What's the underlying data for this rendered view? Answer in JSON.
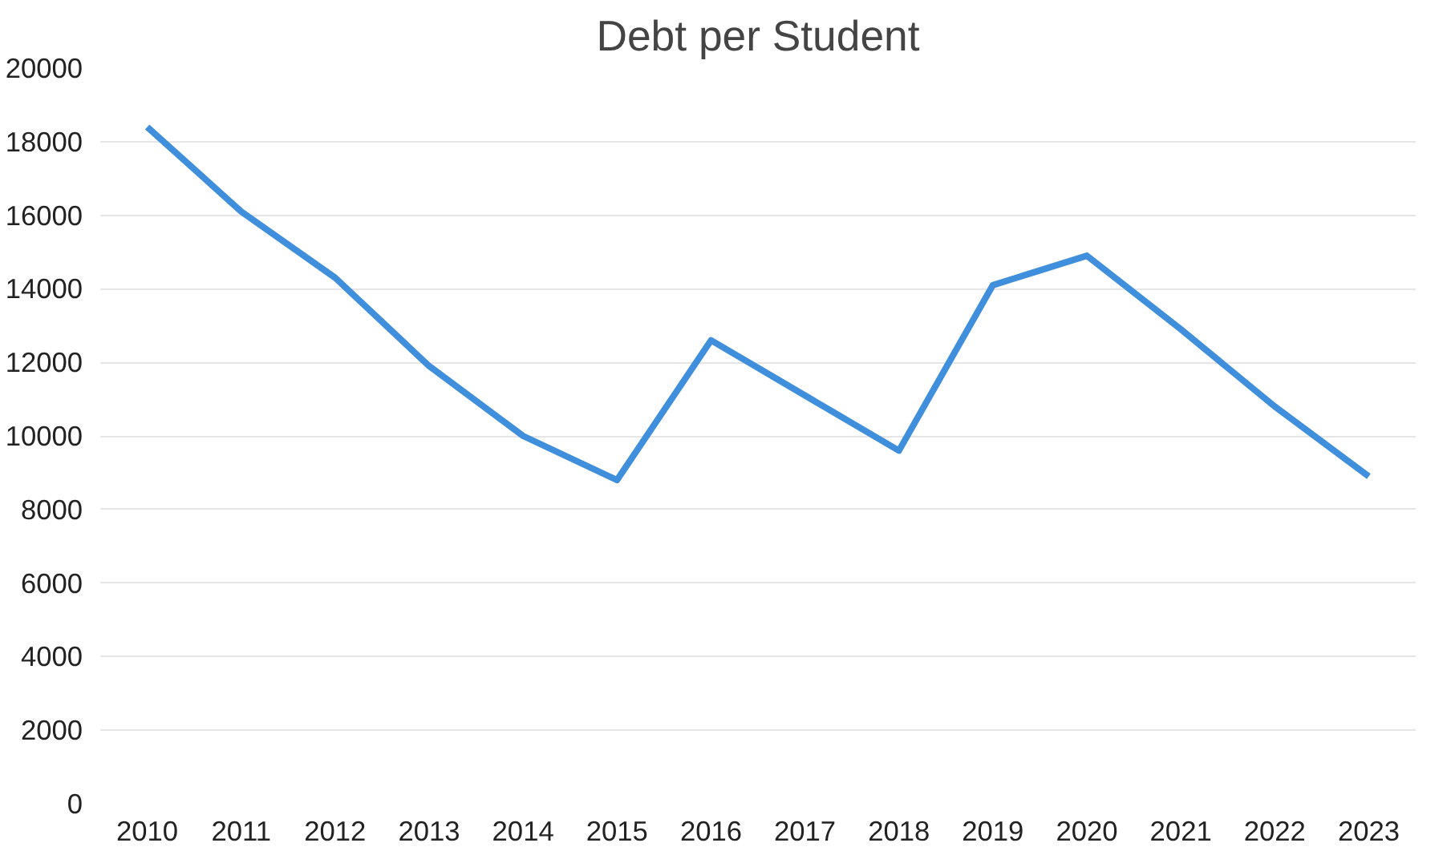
{
  "chart_data": {
    "type": "line",
    "title": "Debt per Student",
    "categories": [
      "2010",
      "2011",
      "2012",
      "2013",
      "2014",
      "2015",
      "2016",
      "2017",
      "2018",
      "2019",
      "2020",
      "2021",
      "2022",
      "2023"
    ],
    "series": [
      {
        "color": "#3f8fdc",
        "values": [
          18400,
          16100,
          14300,
          11900,
          10000,
          8800,
          12600,
          11100,
          9600,
          14100,
          14900,
          12900,
          10800,
          8900
        ]
      }
    ],
    "ylim": [
      0,
      20000
    ],
    "yticks": [
      0,
      2000,
      4000,
      6000,
      8000,
      10000,
      12000,
      14000,
      16000,
      18000,
      20000
    ],
    "grid": "y"
  }
}
